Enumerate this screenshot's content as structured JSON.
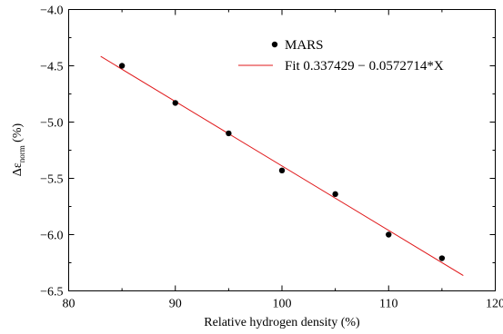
{
  "chart_data": {
    "type": "scatter",
    "title": "",
    "xlabel": "Relative hydrogen density (%)",
    "ylabel": {
      "main": "Δε",
      "subscript": "norm",
      "suffix": " (%)"
    },
    "xlim": [
      80,
      120
    ],
    "ylim": [
      -6.5,
      -4.0
    ],
    "x_ticks": [
      80,
      90,
      100,
      110,
      120
    ],
    "x_tick_labels": [
      "80",
      "90",
      "100",
      "110",
      "120"
    ],
    "y_ticks": [
      -6.5,
      -6.0,
      -5.5,
      -5.0,
      -4.5,
      -4.0
    ],
    "y_tick_labels": [
      "−6.5",
      "−6.0",
      "−5.5",
      "−5.0",
      "−4.5",
      "−4.0"
    ],
    "grid": false,
    "legend_position": "top-right",
    "series": [
      {
        "name": "MARS",
        "kind": "points",
        "color": "#000000",
        "x": [
          85,
          90,
          95,
          100,
          105,
          110,
          115
        ],
        "y": [
          -4.5,
          -4.83,
          -5.1,
          -5.43,
          -5.64,
          -6.0,
          -6.21
        ]
      },
      {
        "name": "Fit 0.337429 − 0.0572714*X",
        "kind": "line",
        "color": "#e0191b",
        "intercept": 0.337429,
        "slope": -0.0572714,
        "x_range": [
          83,
          117
        ]
      }
    ]
  }
}
